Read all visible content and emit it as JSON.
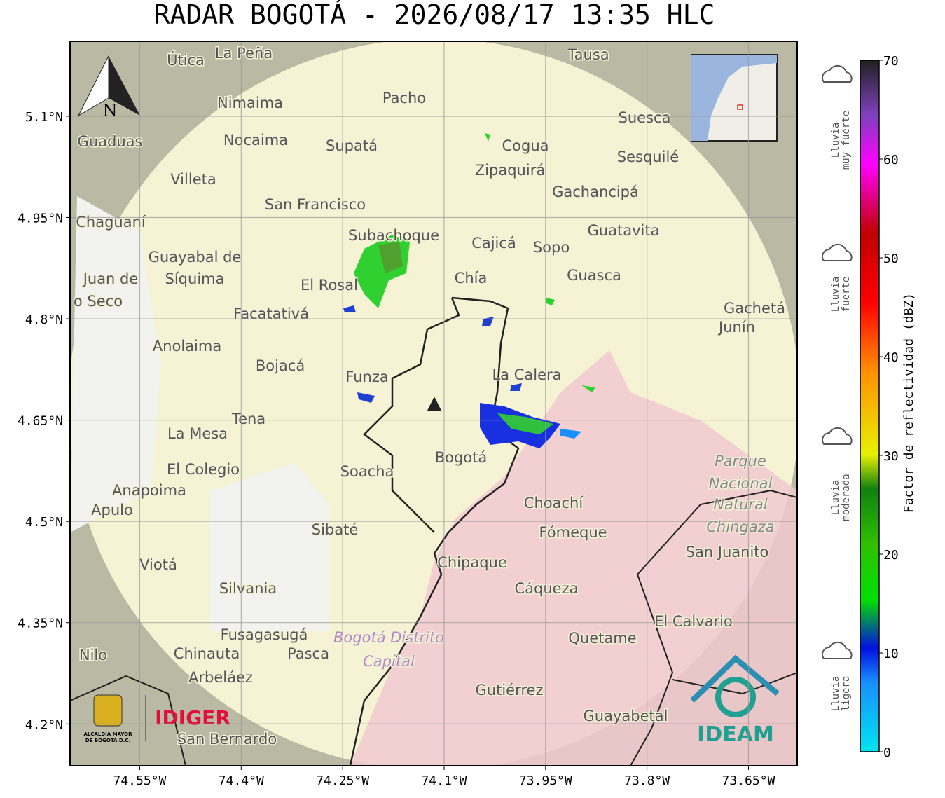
{
  "title": "RADAR BOGOTÁ - 2026/08/17 13:35 HLC",
  "map": {
    "xlim": [
      -74.653,
      -73.578
    ],
    "ylim": [
      4.138,
      5.211
    ],
    "xticks": [
      {
        "value": -74.55,
        "label": "74.55°W"
      },
      {
        "value": -74.4,
        "label": "74.4°W"
      },
      {
        "value": -74.25,
        "label": "74.25°W"
      },
      {
        "value": -74.1,
        "label": "74.1°W"
      },
      {
        "value": -73.95,
        "label": "73.95°W"
      },
      {
        "value": -73.8,
        "label": "73.8°W"
      },
      {
        "value": -73.65,
        "label": "73.65°W"
      }
    ],
    "yticks": [
      {
        "value": 5.1,
        "label": "5.1°N"
      },
      {
        "value": 4.95,
        "label": "4.95°N"
      },
      {
        "value": 4.8,
        "label": "4.8°N"
      },
      {
        "value": 4.65,
        "label": "4.65°N"
      },
      {
        "value": 4.5,
        "label": "4.5°N"
      },
      {
        "value": 4.35,
        "label": "4.35°N"
      },
      {
        "value": 4.2,
        "label": "4.2°N"
      }
    ],
    "north": "N",
    "places": [
      "La Peña",
      "Útica",
      "Tausa",
      "Pacho",
      "Nimaima",
      "Guaduas",
      "Nocaima",
      "Supatá",
      "Cogua",
      "Suesca",
      "Zipaquirá",
      "Sesquilé",
      "Villeta",
      "Gachancipá",
      "San Francisco",
      "Chaguaní",
      "Subachoque",
      "Guatavita",
      "Cajicá",
      "Sopo",
      "Guayabal de",
      "Síquima",
      "El Rosal",
      "Chía",
      "Guasca",
      "Facatativá",
      "Gachetá",
      "Junín",
      "Anolaima",
      "Bojacá",
      "Funza",
      "La Calera",
      "Tena",
      "La Mesa",
      "El Colegio",
      "Soacha",
      "Bogotá",
      "Anapoima",
      "Apulo",
      "Choachí",
      "Fómeque",
      "Sibaté",
      "Chipaque",
      "Viotá",
      "Silvania",
      "Cáqueza",
      "El Calvario",
      "Fusagasugá",
      "Quetame",
      "Chinauta",
      "Pasca",
      "Arbeláez",
      "Gutiérrez",
      "Guayabetal",
      "San Bernardo",
      "Nilo",
      "San Juanito",
      "Juan de",
      "o Seco",
      "Parque",
      "Nacional",
      "Natural",
      "Chingaza",
      "Bogotá Distrito",
      "Capital"
    ]
  },
  "colorbar": {
    "label": "Factor de reflectividad (dBZ)",
    "lim": [
      0,
      70
    ],
    "ticks": [
      0,
      10,
      20,
      30,
      40,
      50,
      60,
      70
    ]
  },
  "rain_legend": [
    [
      "Lluvia",
      "muy fuerte"
    ],
    [
      "Lluvia",
      "fuerte"
    ],
    [
      "Lluvia",
      "moderada"
    ],
    [
      "Lluvia",
      "ligera"
    ]
  ],
  "logos": {
    "alcaldia": [
      "ALCALDÍA MAYOR",
      "DE BOGOTÁ D.C."
    ],
    "idiger": "IDIGER",
    "ideam": "IDEAM"
  }
}
